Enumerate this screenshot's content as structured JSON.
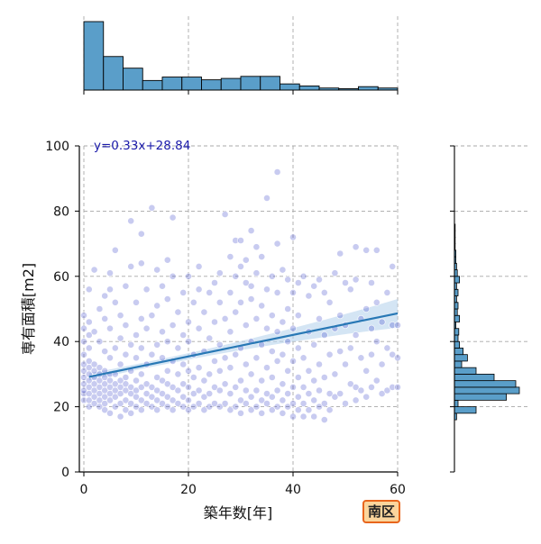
{
  "badge": {
    "label": "南区"
  },
  "chart_data": {
    "type": "scatter",
    "title": "",
    "xlabel": "築年数[年]",
    "ylabel": "専有面積[m2]",
    "xlim": [
      0,
      60
    ],
    "ylim": [
      0,
      100
    ],
    "xticks": [
      "0",
      "20",
      "40",
      "60"
    ],
    "yticks": [
      "0",
      "20",
      "40",
      "60",
      "80",
      "100"
    ],
    "grid": true,
    "regression": {
      "equation": "y=0.33x+28.84",
      "slope": 0.33,
      "intercept": 28.84,
      "x_range": [
        1,
        60
      ]
    },
    "colors": {
      "points": "#3a44c8",
      "line": "#2878b5",
      "band": "#b8d4ec",
      "hist": "#5a9ec9",
      "equation": "#1a1aaa"
    },
    "points": [
      [
        0,
        22
      ],
      [
        0,
        24
      ],
      [
        0,
        25
      ],
      [
        0,
        27
      ],
      [
        0,
        29
      ],
      [
        0,
        31
      ],
      [
        0,
        33
      ],
      [
        0,
        36
      ],
      [
        0,
        40
      ],
      [
        0,
        44
      ],
      [
        0,
        48
      ],
      [
        1,
        20
      ],
      [
        1,
        22
      ],
      [
        1,
        24
      ],
      [
        1,
        26
      ],
      [
        1,
        28
      ],
      [
        1,
        30
      ],
      [
        1,
        32
      ],
      [
        1,
        34
      ],
      [
        1,
        38
      ],
      [
        1,
        42
      ],
      [
        1,
        46
      ],
      [
        1,
        56
      ],
      [
        2,
        21
      ],
      [
        2,
        23
      ],
      [
        2,
        25
      ],
      [
        2,
        27
      ],
      [
        2,
        29
      ],
      [
        2,
        31
      ],
      [
        2,
        33
      ],
      [
        2,
        43
      ],
      [
        2,
        62
      ],
      [
        3,
        20
      ],
      [
        3,
        22
      ],
      [
        3,
        24
      ],
      [
        3,
        26
      ],
      [
        3,
        28
      ],
      [
        3,
        30
      ],
      [
        3,
        32
      ],
      [
        3,
        40
      ],
      [
        3,
        50
      ],
      [
        4,
        19
      ],
      [
        4,
        21
      ],
      [
        4,
        23
      ],
      [
        4,
        25
      ],
      [
        4,
        27
      ],
      [
        4,
        29
      ],
      [
        4,
        31
      ],
      [
        4,
        37
      ],
      [
        4,
        47
      ],
      [
        4,
        54
      ],
      [
        5,
        18
      ],
      [
        5,
        22
      ],
      [
        5,
        24
      ],
      [
        5,
        26
      ],
      [
        5,
        28
      ],
      [
        5,
        30
      ],
      [
        5,
        35
      ],
      [
        5,
        44
      ],
      [
        5,
        56
      ],
      [
        5,
        61
      ],
      [
        6,
        20
      ],
      [
        6,
        23
      ],
      [
        6,
        25
      ],
      [
        6,
        27
      ],
      [
        6,
        30
      ],
      [
        6,
        38
      ],
      [
        6,
        52
      ],
      [
        6,
        68
      ],
      [
        7,
        17
      ],
      [
        7,
        21
      ],
      [
        7,
        24
      ],
      [
        7,
        26
      ],
      [
        7,
        28
      ],
      [
        7,
        33
      ],
      [
        7,
        41
      ],
      [
        7,
        48
      ],
      [
        8,
        19
      ],
      [
        8,
        22
      ],
      [
        8,
        25
      ],
      [
        8,
        27
      ],
      [
        8,
        29
      ],
      [
        8,
        36
      ],
      [
        8,
        45
      ],
      [
        8,
        57
      ],
      [
        9,
        18
      ],
      [
        9,
        21
      ],
      [
        9,
        24
      ],
      [
        9,
        26
      ],
      [
        9,
        31
      ],
      [
        9,
        39
      ],
      [
        9,
        63
      ],
      [
        9,
        77
      ],
      [
        10,
        20
      ],
      [
        10,
        23
      ],
      [
        10,
        25
      ],
      [
        10,
        28
      ],
      [
        10,
        35
      ],
      [
        10,
        42
      ],
      [
        10,
        52
      ],
      [
        11,
        19
      ],
      [
        11,
        22
      ],
      [
        11,
        26
      ],
      [
        11,
        30
      ],
      [
        11,
        38
      ],
      [
        11,
        47
      ],
      [
        11,
        64
      ],
      [
        11,
        73
      ],
      [
        12,
        21
      ],
      [
        12,
        24
      ],
      [
        12,
        27
      ],
      [
        12,
        33
      ],
      [
        12,
        44
      ],
      [
        12,
        56
      ],
      [
        13,
        20
      ],
      [
        13,
        23
      ],
      [
        13,
        26
      ],
      [
        13,
        36
      ],
      [
        13,
        48
      ],
      [
        13,
        81
      ],
      [
        14,
        19
      ],
      [
        14,
        22
      ],
      [
        14,
        25
      ],
      [
        14,
        29
      ],
      [
        14,
        39
      ],
      [
        14,
        51
      ],
      [
        14,
        62
      ],
      [
        15,
        21
      ],
      [
        15,
        24
      ],
      [
        15,
        28
      ],
      [
        15,
        35
      ],
      [
        15,
        43
      ],
      [
        15,
        57
      ],
      [
        16,
        20
      ],
      [
        16,
        23
      ],
      [
        16,
        27
      ],
      [
        16,
        31
      ],
      [
        16,
        40
      ],
      [
        16,
        53
      ],
      [
        16,
        65
      ],
      [
        17,
        19
      ],
      [
        17,
        22
      ],
      [
        17,
        26
      ],
      [
        17,
        34
      ],
      [
        17,
        45
      ],
      [
        17,
        60
      ],
      [
        17,
        78
      ],
      [
        18,
        21
      ],
      [
        18,
        25
      ],
      [
        18,
        30
      ],
      [
        18,
        38
      ],
      [
        18,
        49
      ],
      [
        19,
        20
      ],
      [
        19,
        23
      ],
      [
        19,
        27
      ],
      [
        19,
        33
      ],
      [
        19,
        42
      ],
      [
        19,
        55
      ],
      [
        20,
        19
      ],
      [
        20,
        22
      ],
      [
        20,
        26
      ],
      [
        20,
        31
      ],
      [
        20,
        40
      ],
      [
        20,
        46
      ],
      [
        20,
        60
      ],
      [
        21,
        20
      ],
      [
        21,
        24
      ],
      [
        21,
        29
      ],
      [
        21,
        36
      ],
      [
        21,
        52
      ],
      [
        22,
        21
      ],
      [
        22,
        25
      ],
      [
        22,
        32
      ],
      [
        22,
        44
      ],
      [
        22,
        56
      ],
      [
        22,
        63
      ],
      [
        23,
        19
      ],
      [
        23,
        23
      ],
      [
        23,
        28
      ],
      [
        23,
        37
      ],
      [
        23,
        49
      ],
      [
        24,
        20
      ],
      [
        24,
        24
      ],
      [
        24,
        30
      ],
      [
        24,
        41
      ],
      [
        24,
        55
      ],
      [
        25,
        21
      ],
      [
        25,
        26
      ],
      [
        25,
        34
      ],
      [
        25,
        46
      ],
      [
        25,
        58
      ],
      [
        26,
        20
      ],
      [
        26,
        25
      ],
      [
        26,
        31
      ],
      [
        26,
        39
      ],
      [
        26,
        52
      ],
      [
        26,
        61
      ],
      [
        27,
        21
      ],
      [
        27,
        27
      ],
      [
        27,
        35
      ],
      [
        27,
        47
      ],
      [
        27,
        79
      ],
      [
        28,
        19
      ],
      [
        28,
        24
      ],
      [
        28,
        32
      ],
      [
        28,
        43
      ],
      [
        28,
        55
      ],
      [
        28,
        66
      ],
      [
        29,
        20
      ],
      [
        29,
        26
      ],
      [
        29,
        36
      ],
      [
        29,
        49
      ],
      [
        29,
        60
      ],
      [
        29,
        71
      ],
      [
        30,
        18
      ],
      [
        30,
        22
      ],
      [
        30,
        28
      ],
      [
        30,
        38
      ],
      [
        30,
        52
      ],
      [
        30,
        63
      ],
      [
        30,
        71
      ],
      [
        31,
        21
      ],
      [
        31,
        25
      ],
      [
        31,
        33
      ],
      [
        31,
        45
      ],
      [
        31,
        58
      ],
      [
        31,
        65
      ],
      [
        32,
        19
      ],
      [
        32,
        23
      ],
      [
        32,
        30
      ],
      [
        32,
        40
      ],
      [
        32,
        53
      ],
      [
        32,
        57
      ],
      [
        32,
        74
      ],
      [
        33,
        20
      ],
      [
        33,
        25
      ],
      [
        33,
        35
      ],
      [
        33,
        47
      ],
      [
        33,
        61
      ],
      [
        33,
        69
      ],
      [
        34,
        18
      ],
      [
        34,
        22
      ],
      [
        34,
        28
      ],
      [
        34,
        39
      ],
      [
        34,
        51
      ],
      [
        34,
        66
      ],
      [
        35,
        21
      ],
      [
        35,
        24
      ],
      [
        35,
        32
      ],
      [
        35,
        44
      ],
      [
        35,
        56
      ],
      [
        35,
        84
      ],
      [
        36,
        19
      ],
      [
        36,
        23
      ],
      [
        36,
        29
      ],
      [
        36,
        37
      ],
      [
        36,
        48
      ],
      [
        36,
        60
      ],
      [
        37,
        20
      ],
      [
        37,
        25
      ],
      [
        37,
        34
      ],
      [
        37,
        43
      ],
      [
        37,
        55
      ],
      [
        37,
        70
      ],
      [
        37,
        92
      ],
      [
        38,
        18
      ],
      [
        38,
        22
      ],
      [
        38,
        27
      ],
      [
        38,
        36
      ],
      [
        38,
        46
      ],
      [
        38,
        62
      ],
      [
        39,
        20
      ],
      [
        39,
        24
      ],
      [
        39,
        31
      ],
      [
        39,
        40
      ],
      [
        39,
        50
      ],
      [
        39,
        59
      ],
      [
        40,
        17
      ],
      [
        40,
        21
      ],
      [
        40,
        26
      ],
      [
        40,
        34
      ],
      [
        40,
        44
      ],
      [
        40,
        55
      ],
      [
        40,
        72
      ],
      [
        41,
        19
      ],
      [
        41,
        23
      ],
      [
        41,
        29
      ],
      [
        41,
        38
      ],
      [
        41,
        48
      ],
      [
        41,
        58
      ],
      [
        42,
        17
      ],
      [
        42,
        21
      ],
      [
        42,
        26
      ],
      [
        42,
        35
      ],
      [
        42,
        60
      ],
      [
        43,
        19
      ],
      [
        43,
        24
      ],
      [
        43,
        31
      ],
      [
        43,
        43
      ],
      [
        43,
        54
      ],
      [
        44,
        17
      ],
      [
        44,
        22
      ],
      [
        44,
        28
      ],
      [
        44,
        39
      ],
      [
        44,
        57
      ],
      [
        45,
        20
      ],
      [
        45,
        25
      ],
      [
        45,
        33
      ],
      [
        45,
        47
      ],
      [
        45,
        59
      ],
      [
        46,
        16
      ],
      [
        46,
        21
      ],
      [
        46,
        29
      ],
      [
        46,
        42
      ],
      [
        46,
        55
      ],
      [
        47,
        19
      ],
      [
        47,
        24
      ],
      [
        47,
        36
      ],
      [
        47,
        52
      ],
      [
        48,
        23
      ],
      [
        48,
        30
      ],
      [
        48,
        44
      ],
      [
        48,
        61
      ],
      [
        49,
        24
      ],
      [
        49,
        37
      ],
      [
        49,
        48
      ],
      [
        49,
        67
      ],
      [
        50,
        21
      ],
      [
        50,
        33
      ],
      [
        50,
        45
      ],
      [
        50,
        58
      ],
      [
        51,
        27
      ],
      [
        51,
        38
      ],
      [
        51,
        56
      ],
      [
        52,
        22
      ],
      [
        52,
        26
      ],
      [
        52,
        42
      ],
      [
        52,
        59
      ],
      [
        52,
        69
      ],
      [
        53,
        25
      ],
      [
        53,
        35
      ],
      [
        53,
        47
      ],
      [
        54,
        23
      ],
      [
        54,
        31
      ],
      [
        54,
        50
      ],
      [
        54,
        68
      ],
      [
        55,
        26
      ],
      [
        55,
        36
      ],
      [
        55,
        44
      ],
      [
        55,
        58
      ],
      [
        56,
        28
      ],
      [
        56,
        40
      ],
      [
        56,
        52
      ],
      [
        56,
        68
      ],
      [
        57,
        24
      ],
      [
        57,
        33
      ],
      [
        57,
        46
      ],
      [
        58,
        25
      ],
      [
        58,
        38
      ],
      [
        58,
        55
      ],
      [
        59,
        26
      ],
      [
        59,
        36
      ],
      [
        59,
        45
      ],
      [
        59,
        63
      ],
      [
        60,
        26
      ],
      [
        60,
        35
      ],
      [
        60,
        45
      ]
    ],
    "x_hist_bins": [
      0,
      3.75,
      7.5,
      11.25,
      15,
      18.75,
      22.5,
      26.25,
      30,
      33.75,
      37.5,
      41.25,
      45,
      48.75,
      52.5,
      56.25,
      60
    ],
    "x_hist_counts": [
      100,
      49,
      32,
      14,
      19,
      19,
      15,
      17,
      20,
      20,
      9,
      6,
      3,
      2,
      5,
      3
    ],
    "y_hist_bins": [
      16,
      18,
      20,
      22,
      24,
      26,
      28,
      30,
      32,
      34,
      36,
      38,
      40,
      42,
      44,
      46,
      48,
      50,
      52,
      54,
      56,
      58,
      60,
      62,
      64,
      66,
      68,
      70,
      72,
      74,
      76,
      78,
      80,
      82,
      84,
      86,
      88,
      90,
      92
    ],
    "y_hist_counts": [
      3,
      30,
      5,
      72,
      90,
      85,
      55,
      30,
      10,
      18,
      12,
      7,
      5,
      6,
      2,
      7,
      4,
      5,
      3,
      5,
      3,
      7,
      4,
      3,
      2,
      2,
      1,
      1,
      1,
      1,
      0,
      0,
      0,
      0,
      0,
      0,
      0,
      0
    ]
  }
}
